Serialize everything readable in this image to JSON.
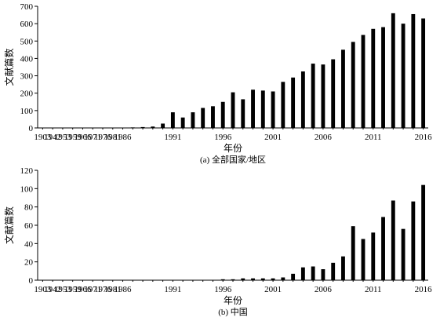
{
  "chart_data": [
    {
      "type": "bar",
      "caption": "(a) 全部国家/地区",
      "xlabel": "年份",
      "ylabel": "文献篇数",
      "ylim": [
        0,
        700
      ],
      "yticks": [
        0,
        100,
        200,
        300,
        400,
        500,
        600,
        700
      ],
      "xtick_labels": [
        "1903",
        "1942",
        "1953",
        "1959",
        "1966",
        "1971",
        "1976",
        "1981",
        "1986",
        "1991",
        "1996",
        "2001",
        "2006",
        "2011",
        "2016"
      ],
      "categories": [
        "1903",
        "1942",
        "1953",
        "1959",
        "1966",
        "1971",
        "1976",
        "1981",
        "1986",
        "1987",
        "1988",
        "1989",
        "1990",
        "1991",
        "1992",
        "1993",
        "1994",
        "1995",
        "1996",
        "1997",
        "1998",
        "1999",
        "2000",
        "2001",
        "2002",
        "2003",
        "2004",
        "2005",
        "2006",
        "2007",
        "2008",
        "2009",
        "2010",
        "2011",
        "2012",
        "2013",
        "2014",
        "2015",
        "2016"
      ],
      "values": [
        1,
        1,
        1,
        1,
        1,
        1,
        1,
        1,
        2,
        3,
        5,
        8,
        25,
        90,
        60,
        90,
        115,
        125,
        150,
        205,
        165,
        220,
        215,
        210,
        265,
        290,
        325,
        370,
        365,
        395,
        450,
        495,
        535,
        570,
        580,
        660,
        600,
        655,
        630
      ],
      "grid": false
    },
    {
      "type": "bar",
      "caption": "(b) 中国",
      "xlabel": "年份",
      "ylabel": "文献篇数",
      "ylim": [
        0,
        120
      ],
      "yticks": [
        0,
        20,
        40,
        60,
        80,
        100,
        120
      ],
      "xtick_labels": [
        "1903",
        "1942",
        "1953",
        "1959",
        "1966",
        "1971",
        "1976",
        "1981",
        "1986",
        "1991",
        "1996",
        "2001",
        "2006",
        "2011",
        "2016"
      ],
      "categories": [
        "1903",
        "1942",
        "1953",
        "1959",
        "1966",
        "1971",
        "1976",
        "1981",
        "1986",
        "1987",
        "1988",
        "1989",
        "1990",
        "1991",
        "1992",
        "1993",
        "1994",
        "1995",
        "1996",
        "1997",
        "1998",
        "1999",
        "2000",
        "2001",
        "2002",
        "2003",
        "2004",
        "2005",
        "2006",
        "2007",
        "2008",
        "2009",
        "2010",
        "2011",
        "2012",
        "2013",
        "2014",
        "2015",
        "2016"
      ],
      "values": [
        0,
        0,
        0,
        0,
        0,
        0,
        0,
        0,
        0,
        0,
        0,
        0,
        0,
        0,
        0,
        0,
        0,
        0,
        1,
        1,
        2,
        2,
        2,
        2,
        3,
        7,
        14,
        15,
        12,
        19,
        26,
        59,
        45,
        52,
        69,
        87,
        56,
        86,
        104
      ],
      "grid": false
    }
  ]
}
